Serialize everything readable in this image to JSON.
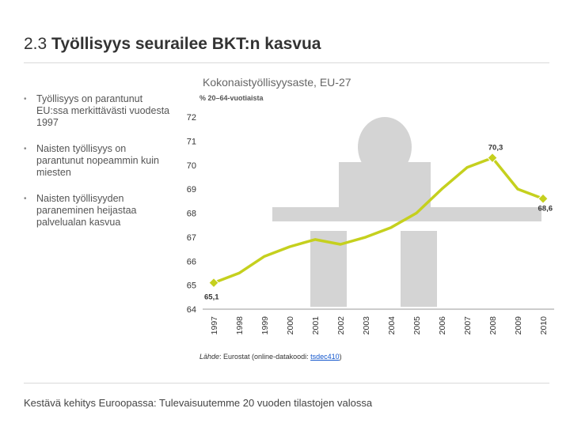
{
  "slide": {
    "title_num": "2.3",
    "title_text": "Työllisyys seurailee BKT:n kasvua",
    "bullets": [
      "Työllisyys on parantunut EU:ssa merkittävästi vuodesta 1997",
      "Naisten työllisyys on parantunut nopeammin kuin miesten",
      "Naisten työllisyyden paraneminen heijastaa palvelualan kasvua"
    ],
    "source_label": "Lähde",
    "source_text": ": Eurostat (online-datakoodi: ",
    "source_code": "tsdec410",
    "source_end": ")",
    "footer": "Kestävä kehitys Euroopassa: Tulevaisuutemme 20 vuoden tilastojen valossa"
  },
  "colors": {
    "line": "#c5d01e",
    "marker": "#c5d01e",
    "figure": "#d4d4d4",
    "axis": "#999999"
  },
  "chart_data": {
    "type": "line",
    "title": "Kokonaistyöllisyysaste, EU-27",
    "ylabel": "% 20–64-vuotiaista",
    "xlabel": "",
    "ylim": [
      64,
      72
    ],
    "yticks": [
      64,
      65,
      66,
      67,
      68,
      69,
      70,
      71,
      72
    ],
    "x": [
      "1997",
      "1998",
      "1999",
      "2000",
      "2001",
      "2002",
      "2003",
      "2004",
      "2005",
      "2006",
      "2007",
      "2008",
      "2009",
      "2010"
    ],
    "series": [
      {
        "name": "Kokonaistyöllisyysaste",
        "values": [
          65.1,
          65.5,
          66.2,
          66.6,
          66.9,
          66.7,
          67.0,
          67.4,
          68.0,
          69.0,
          69.9,
          70.3,
          69.0,
          68.6
        ]
      }
    ],
    "annotations": [
      {
        "index": 0,
        "label": "65,1"
      },
      {
        "index": 11,
        "label": "70,3"
      },
      {
        "index": 13,
        "label": "68,6"
      }
    ],
    "grid": false
  }
}
